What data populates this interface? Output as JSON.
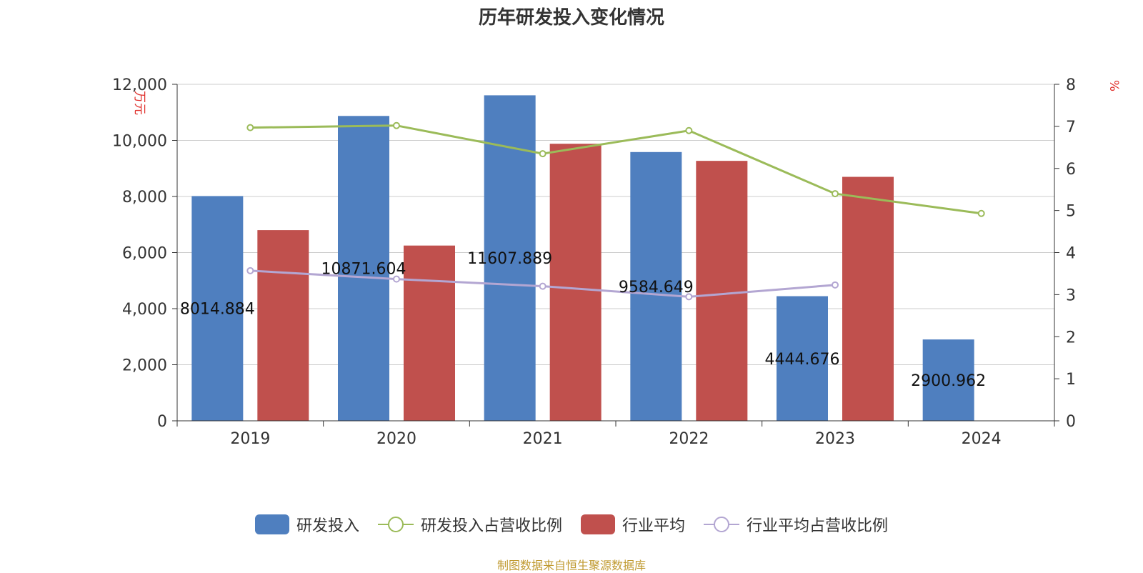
{
  "colors": {
    "rd_bar": "#4f7fbf",
    "industry_bar": "#c0504d",
    "rd_ratio_line": "#9bbb59",
    "industry_ratio_line": "#b3a6d2",
    "axis": "#333333",
    "grid": "#cccccc",
    "unit": "#e0302c"
  },
  "chart_data": {
    "type": "bar",
    "title": "历年研发投入变化情况",
    "categories": [
      "2019",
      "2020",
      "2021",
      "2022",
      "2023",
      "2024"
    ],
    "y_left": {
      "label": "万元",
      "ylim": [
        0,
        12000
      ],
      "ticks": [
        "0",
        "2,000",
        "4,000",
        "6,000",
        "8,000",
        "10,000",
        "12,000"
      ]
    },
    "y_right": {
      "label": "%",
      "ylim": [
        0,
        8
      ],
      "ticks": [
        "0",
        "1",
        "2",
        "3",
        "4",
        "5",
        "6",
        "7",
        "8"
      ]
    },
    "series": [
      {
        "name": "研发投入",
        "kind": "bar",
        "axis": "left",
        "values": [
          8014.884,
          10871.604,
          11607.889,
          9584.649,
          4444.676,
          2900.962
        ],
        "labels": [
          "8014.884",
          "10871.604",
          "11607.889",
          "9584.649",
          "4444.676",
          "2900.962"
        ]
      },
      {
        "name": "研发投入占营收比例",
        "kind": "line",
        "axis": "right",
        "values": [
          6.97,
          7.02,
          6.35,
          6.9,
          5.4,
          4.93
        ]
      },
      {
        "name": "行业平均",
        "kind": "bar",
        "axis": "left",
        "values": [
          6800,
          6250,
          9880,
          9270,
          8700,
          null
        ]
      },
      {
        "name": "行业平均占营收比例",
        "kind": "line",
        "axis": "right",
        "values": [
          3.57,
          3.37,
          3.2,
          2.95,
          3.23,
          null
        ]
      }
    ],
    "grid": true,
    "legend": "bottom"
  },
  "source": "制图数据来自恒生聚源数据库"
}
